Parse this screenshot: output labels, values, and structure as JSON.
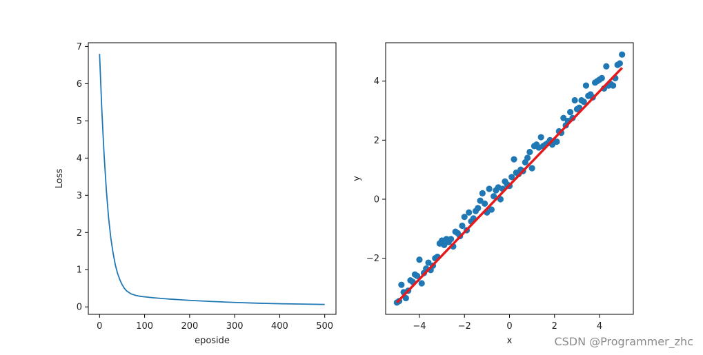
{
  "chart_data": [
    {
      "type": "line",
      "xlabel": "eposide",
      "ylabel": "Loss",
      "xlim": [
        -25,
        525
      ],
      "ylim": [
        -0.2,
        7.1
      ],
      "x_ticks": [
        0,
        100,
        200,
        300,
        400,
        500
      ],
      "y_ticks": [
        0,
        1,
        2,
        3,
        4,
        5,
        6,
        7
      ],
      "grid": false,
      "series": [
        {
          "color": "#1f77b4",
          "x": [
            0,
            5,
            10,
            15,
            20,
            25,
            30,
            35,
            40,
            45,
            50,
            55,
            60,
            70,
            80,
            90,
            100,
            120,
            150,
            200,
            250,
            300,
            350,
            400,
            450,
            500
          ],
          "y": [
            6.8,
            5.3,
            4.1,
            3.15,
            2.4,
            1.85,
            1.45,
            1.13,
            0.9,
            0.73,
            0.6,
            0.5,
            0.43,
            0.35,
            0.31,
            0.285,
            0.27,
            0.245,
            0.215,
            0.175,
            0.145,
            0.12,
            0.1,
            0.085,
            0.075,
            0.065
          ]
        }
      ]
    },
    {
      "type": "scatter",
      "xlabel": "x",
      "ylabel": "y",
      "xlim": [
        -5.5,
        5.5
      ],
      "ylim": [
        -3.9,
        5.3
      ],
      "x_ticks": [
        -4,
        -2,
        0,
        2,
        4
      ],
      "y_ticks": [
        -2,
        0,
        2,
        4
      ],
      "grid": false,
      "points_color": "#1f77b4",
      "line_color": "#e41a1c",
      "fit_line": {
        "x": [
          -5,
          5
        ],
        "y": [
          -3.5,
          4.45
        ]
      },
      "points": {
        "x": [
          -5.0,
          -4.9,
          -4.8,
          -4.7,
          -4.6,
          -4.5,
          -4.4,
          -4.3,
          -4.2,
          -4.1,
          -4.0,
          -3.9,
          -3.8,
          -3.7,
          -3.6,
          -3.5,
          -3.4,
          -3.3,
          -3.2,
          -3.1,
          -3.0,
          -2.9,
          -2.8,
          -2.7,
          -2.6,
          -2.5,
          -2.4,
          -2.3,
          -2.2,
          -2.1,
          -2.0,
          -1.9,
          -1.8,
          -1.7,
          -1.6,
          -1.5,
          -1.4,
          -1.3,
          -1.2,
          -1.1,
          -1.0,
          -0.9,
          -0.8,
          -0.7,
          -0.6,
          -0.5,
          -0.4,
          -0.3,
          -0.2,
          -0.1,
          0.0,
          0.1,
          0.2,
          0.3,
          0.4,
          0.5,
          0.6,
          0.7,
          0.8,
          0.9,
          1.0,
          1.1,
          1.2,
          1.3,
          1.4,
          1.5,
          1.6,
          1.7,
          1.8,
          1.9,
          2.0,
          2.1,
          2.2,
          2.3,
          2.4,
          2.5,
          2.6,
          2.7,
          2.8,
          2.9,
          3.0,
          3.1,
          3.2,
          3.3,
          3.4,
          3.5,
          3.6,
          3.7,
          3.8,
          3.9,
          4.0,
          4.1,
          4.2,
          4.3,
          4.4,
          4.5,
          4.6,
          4.7,
          4.8,
          4.9,
          5.0
        ],
        "y": [
          -3.5,
          -3.45,
          -2.9,
          -3.15,
          -3.35,
          -3.1,
          -2.75,
          -2.8,
          -2.55,
          -2.6,
          -2.05,
          -2.85,
          -2.5,
          -2.35,
          -2.15,
          -2.4,
          -2.25,
          -2.0,
          -1.95,
          -1.5,
          -1.4,
          -1.55,
          -1.35,
          -1.45,
          -1.35,
          -1.6,
          -1.1,
          -1.15,
          -1.25,
          -0.9,
          -0.6,
          -1.05,
          -0.45,
          -0.75,
          -0.65,
          -0.4,
          -0.3,
          -0.05,
          0.2,
          -0.15,
          -0.45,
          0.35,
          -0.35,
          0.1,
          0.3,
          0.4,
          0.0,
          0.35,
          0.6,
          0.5,
          0.45,
          0.75,
          1.35,
          0.9,
          0.85,
          1.0,
          0.95,
          1.25,
          1.4,
          1.6,
          1.05,
          1.8,
          1.85,
          1.75,
          2.1,
          1.8,
          1.85,
          1.9,
          2.0,
          1.85,
          1.95,
          1.95,
          2.3,
          2.25,
          2.75,
          2.5,
          2.65,
          2.95,
          2.75,
          3.35,
          3.05,
          3.1,
          3.35,
          3.3,
          3.85,
          3.5,
          3.55,
          3.45,
          3.95,
          4.0,
          4.05,
          4.1,
          3.75,
          4.5,
          3.85,
          3.9,
          3.85,
          4.1,
          4.55,
          4.6,
          4.9
        ]
      }
    }
  ],
  "watermark": "CSDN @Programmer_zhc"
}
